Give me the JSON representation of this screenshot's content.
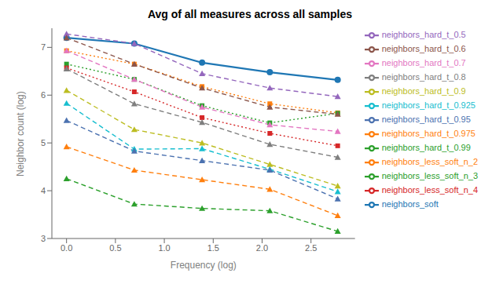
{
  "chart_data": {
    "type": "line",
    "title": "Avg of all measures across all samples",
    "xlabel": "Frequency (log)",
    "ylabel": "Neighbor count (log)",
    "x": [
      0.0,
      0.693,
      1.386,
      2.079,
      2.773
    ],
    "series": [
      {
        "name": "neighbors_soft",
        "color": "#1f77b4",
        "line_style": "solid",
        "marker": "circle",
        "values": [
          7.2,
          7.08,
          6.68,
          6.48,
          6.32
        ]
      },
      {
        "name": "neighbors_less_soft_n_2",
        "color": "#ff7f0e",
        "line_style": "dotted",
        "marker": "square",
        "values": [
          6.93,
          6.65,
          6.18,
          5.82,
          5.63
        ]
      },
      {
        "name": "neighbors_less_soft_n_3",
        "color": "#2ca02c",
        "line_style": "dotted",
        "marker": "square",
        "values": [
          6.65,
          6.33,
          5.78,
          5.42,
          5.62
        ]
      },
      {
        "name": "neighbors_less_soft_n_4",
        "color": "#d62728",
        "line_style": "dotted",
        "marker": "square",
        "values": [
          6.57,
          6.07,
          5.53,
          5.2,
          4.94
        ]
      },
      {
        "name": "neighbors_hard_t_0.5",
        "color": "#9467bd",
        "line_style": "dashed",
        "marker": "triangle",
        "values": [
          7.28,
          7.08,
          6.45,
          6.15,
          5.97
        ]
      },
      {
        "name": "neighbors_hard_t_0.6",
        "color": "#8c564b",
        "line_style": "dashed",
        "marker": "triangle",
        "values": [
          7.2,
          6.65,
          6.15,
          5.75,
          5.6
        ]
      },
      {
        "name": "neighbors_hard_t_0.7",
        "color": "#e377c2",
        "line_style": "dashed",
        "marker": "triangle",
        "values": [
          6.93,
          6.33,
          5.75,
          5.38,
          5.24
        ]
      },
      {
        "name": "neighbors_hard_t_0.8",
        "color": "#7f7f7f",
        "line_style": "dashed",
        "marker": "triangle",
        "values": [
          6.55,
          5.82,
          5.43,
          4.97,
          4.7
        ]
      },
      {
        "name": "neighbors_hard_t_0.9",
        "color": "#bcbd22",
        "line_style": "dashed",
        "marker": "triangle",
        "values": [
          6.1,
          5.28,
          5.0,
          4.55,
          4.1
        ]
      },
      {
        "name": "neighbors_hard_t_0.925",
        "color": "#17becf",
        "line_style": "dashed",
        "marker": "triangle",
        "values": [
          5.83,
          4.87,
          4.88,
          4.45,
          3.98
        ]
      },
      {
        "name": "neighbors_hard_t_0.95",
        "color": "#4c72b0",
        "line_style": "dashed",
        "marker": "triangle",
        "values": [
          5.47,
          4.83,
          4.63,
          4.43,
          3.83
        ]
      },
      {
        "name": "neighbors_hard_t_0.975",
        "color": "#ff7f0e",
        "line_style": "dashed",
        "marker": "triangle",
        "values": [
          4.92,
          4.43,
          4.23,
          4.03,
          3.48
        ]
      },
      {
        "name": "neighbors_hard_t_0.99",
        "color": "#2ca02c",
        "line_style": "dashed",
        "marker": "triangle",
        "values": [
          4.25,
          3.72,
          3.63,
          3.58,
          3.15
        ]
      }
    ],
    "xlim": [
      -0.15,
      2.95
    ],
    "ylim": [
      3.0,
      7.4
    ],
    "xticks": [
      {
        "value": 0.0,
        "label": "0.0"
      },
      0.5,
      {
        "value": 1.0,
        "label": "1.0"
      },
      1.5,
      {
        "value": 2.0,
        "label": "2.0"
      },
      2.5
    ],
    "yticks": [
      3,
      4,
      5,
      6,
      7
    ],
    "grid": false,
    "legend": "right"
  }
}
